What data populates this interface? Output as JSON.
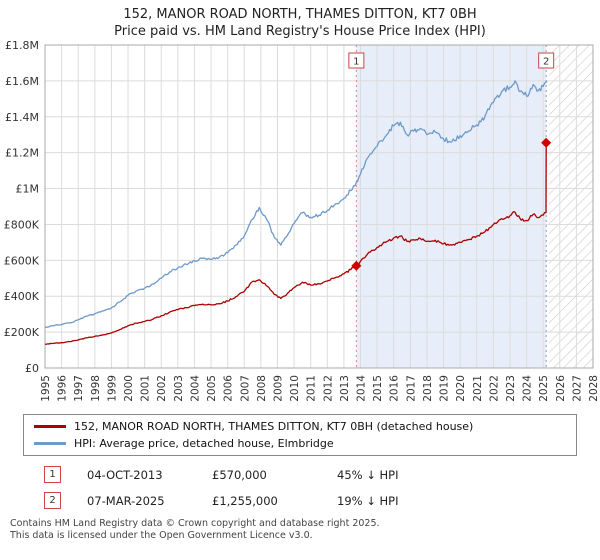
{
  "title": "152, MANOR ROAD NORTH, THAMES DITTON, KT7 0BH",
  "subtitle": "Price paid vs. HM Land Registry's House Price Index (HPI)",
  "chart_data": {
    "type": "line",
    "x_range": [
      1995,
      2028
    ],
    "y_range": [
      0,
      1800000
    ],
    "grid": true,
    "legend_position": "bottom",
    "x_ticks": [
      1995,
      1996,
      1997,
      1998,
      1999,
      2000,
      2001,
      2002,
      2003,
      2004,
      2005,
      2006,
      2007,
      2008,
      2009,
      2010,
      2011,
      2012,
      2013,
      2014,
      2015,
      2016,
      2017,
      2018,
      2019,
      2020,
      2021,
      2022,
      2023,
      2024,
      2025,
      2026,
      2027,
      2028
    ],
    "y_ticks": [
      {
        "value": 0,
        "label": "£0"
      },
      {
        "value": 200000,
        "label": "£200K"
      },
      {
        "value": 400000,
        "label": "£400K"
      },
      {
        "value": 600000,
        "label": "£600K"
      },
      {
        "value": 800000,
        "label": "£800K"
      },
      {
        "value": 1000000,
        "label": "£1M"
      },
      {
        "value": 1200000,
        "label": "£1.2M"
      },
      {
        "value": 1400000,
        "label": "£1.4M"
      },
      {
        "value": 1600000,
        "label": "£1.6M"
      },
      {
        "value": 1800000,
        "label": "£1.8M"
      }
    ],
    "shaded_region": {
      "from": 2013.75,
      "to": 2025.18,
      "color": "#e7eefa"
    },
    "hatched_region": {
      "from": 2025.35,
      "to": 2028
    },
    "series": [
      {
        "name": "152, MANOR ROAD NORTH, THAMES DITTON, KT7 0BH (detached house)",
        "color": "#aa0000",
        "points": [
          [
            1995.0,
            133000
          ],
          [
            1995.5,
            137000
          ],
          [
            1996.0,
            141000
          ],
          [
            1996.5,
            147000
          ],
          [
            1997.0,
            156000
          ],
          [
            1997.5,
            168000
          ],
          [
            1998.0,
            176000
          ],
          [
            1998.5,
            185000
          ],
          [
            1999.0,
            195000
          ],
          [
            1999.5,
            214000
          ],
          [
            2000.0,
            236000
          ],
          [
            2000.5,
            250000
          ],
          [
            2001.0,
            259000
          ],
          [
            2001.5,
            272000
          ],
          [
            2002.0,
            291000
          ],
          [
            2002.5,
            311000
          ],
          [
            2003.0,
            325000
          ],
          [
            2003.5,
            336000
          ],
          [
            2004.0,
            348000
          ],
          [
            2004.5,
            356000
          ],
          [
            2005.0,
            352000
          ],
          [
            2005.5,
            359000
          ],
          [
            2006.0,
            373000
          ],
          [
            2006.5,
            398000
          ],
          [
            2007.0,
            427000
          ],
          [
            2007.5,
            482000
          ],
          [
            2007.9,
            492000
          ],
          [
            2008.4,
            455000
          ],
          [
            2008.8,
            410000
          ],
          [
            2009.2,
            388000
          ],
          [
            2009.6,
            415000
          ],
          [
            2010.0,
            448000
          ],
          [
            2010.5,
            478000
          ],
          [
            2011.0,
            462000
          ],
          [
            2011.5,
            470000
          ],
          [
            2012.0,
            485000
          ],
          [
            2012.5,
            505000
          ],
          [
            2013.0,
            525000
          ],
          [
            2013.75,
            570000
          ],
          [
            2014.0,
            595000
          ],
          [
            2014.5,
            645000
          ],
          [
            2015.0,
            672000
          ],
          [
            2015.5,
            700000
          ],
          [
            2016.0,
            725000
          ],
          [
            2016.4,
            735000
          ],
          [
            2016.8,
            705000
          ],
          [
            2017.2,
            715000
          ],
          [
            2017.6,
            722000
          ],
          [
            2018.0,
            705000
          ],
          [
            2018.5,
            712000
          ],
          [
            2019.0,
            692000
          ],
          [
            2019.5,
            685000
          ],
          [
            2020.0,
            700000
          ],
          [
            2020.5,
            715000
          ],
          [
            2021.0,
            735000
          ],
          [
            2021.5,
            760000
          ],
          [
            2022.0,
            800000
          ],
          [
            2022.5,
            832000
          ],
          [
            2023.0,
            848000
          ],
          [
            2023.3,
            868000
          ],
          [
            2023.6,
            835000
          ],
          [
            2024.0,
            822000
          ],
          [
            2024.4,
            856000
          ],
          [
            2024.7,
            838000
          ],
          [
            2025.0,
            852000
          ],
          [
            2025.17,
            866000
          ],
          [
            2025.18,
            1255000
          ],
          [
            2025.3,
            1262000
          ]
        ]
      },
      {
        "name": "HPI: Average price, detached house, Elmbridge",
        "color": "#6d9ac8",
        "points": [
          [
            1995.0,
            228000
          ],
          [
            1995.5,
            236000
          ],
          [
            1996.0,
            242000
          ],
          [
            1996.5,
            252000
          ],
          [
            1997.0,
            268000
          ],
          [
            1997.5,
            288000
          ],
          [
            1998.0,
            302000
          ],
          [
            1998.5,
            318000
          ],
          [
            1999.0,
            335000
          ],
          [
            1999.5,
            368000
          ],
          [
            2000.0,
            405000
          ],
          [
            2000.5,
            430000
          ],
          [
            2001.0,
            445000
          ],
          [
            2001.5,
            468000
          ],
          [
            2002.0,
            500000
          ],
          [
            2002.5,
            535000
          ],
          [
            2003.0,
            558000
          ],
          [
            2003.5,
            578000
          ],
          [
            2004.0,
            598000
          ],
          [
            2004.5,
            612000
          ],
          [
            2005.0,
            605000
          ],
          [
            2005.5,
            618000
          ],
          [
            2006.0,
            642000
          ],
          [
            2006.5,
            685000
          ],
          [
            2007.0,
            735000
          ],
          [
            2007.5,
            830000
          ],
          [
            2007.9,
            895000
          ],
          [
            2008.4,
            820000
          ],
          [
            2008.8,
            730000
          ],
          [
            2009.2,
            685000
          ],
          [
            2009.6,
            740000
          ],
          [
            2010.0,
            805000
          ],
          [
            2010.5,
            865000
          ],
          [
            2011.0,
            840000
          ],
          [
            2011.5,
            852000
          ],
          [
            2012.0,
            878000
          ],
          [
            2012.5,
            915000
          ],
          [
            2013.0,
            945000
          ],
          [
            2013.75,
            1035000
          ],
          [
            2014.0,
            1080000
          ],
          [
            2014.5,
            1180000
          ],
          [
            2015.0,
            1235000
          ],
          [
            2015.5,
            1290000
          ],
          [
            2016.0,
            1350000
          ],
          [
            2016.4,
            1370000
          ],
          [
            2016.8,
            1300000
          ],
          [
            2017.2,
            1320000
          ],
          [
            2017.6,
            1335000
          ],
          [
            2018.0,
            1300000
          ],
          [
            2018.5,
            1315000
          ],
          [
            2019.0,
            1275000
          ],
          [
            2019.5,
            1260000
          ],
          [
            2020.0,
            1295000
          ],
          [
            2020.5,
            1320000
          ],
          [
            2021.0,
            1355000
          ],
          [
            2021.5,
            1405000
          ],
          [
            2022.0,
            1480000
          ],
          [
            2022.5,
            1540000
          ],
          [
            2023.0,
            1565000
          ],
          [
            2023.3,
            1600000
          ],
          [
            2023.6,
            1540000
          ],
          [
            2024.0,
            1515000
          ],
          [
            2024.4,
            1580000
          ],
          [
            2024.7,
            1545000
          ],
          [
            2025.0,
            1570000
          ],
          [
            2025.25,
            1595000
          ]
        ]
      }
    ],
    "markers": [
      {
        "n": "1",
        "x": 2013.75,
        "y": 570000,
        "line_color": "#e08888"
      },
      {
        "n": "2",
        "x": 2025.18,
        "y": 1255000,
        "line_color": "#9a9a9a"
      }
    ]
  },
  "sales": [
    {
      "num": "1",
      "date": "04-OCT-2013",
      "price": "£570,000",
      "hpi": "45% ↓ HPI"
    },
    {
      "num": "2",
      "date": "07-MAR-2025",
      "price": "£1,255,000",
      "hpi": "19% ↓ HPI"
    }
  ],
  "footer": [
    "Contains HM Land Registry data © Crown copyright and database right 2025.",
    "This data is licensed under the Open Government Licence v3.0."
  ]
}
